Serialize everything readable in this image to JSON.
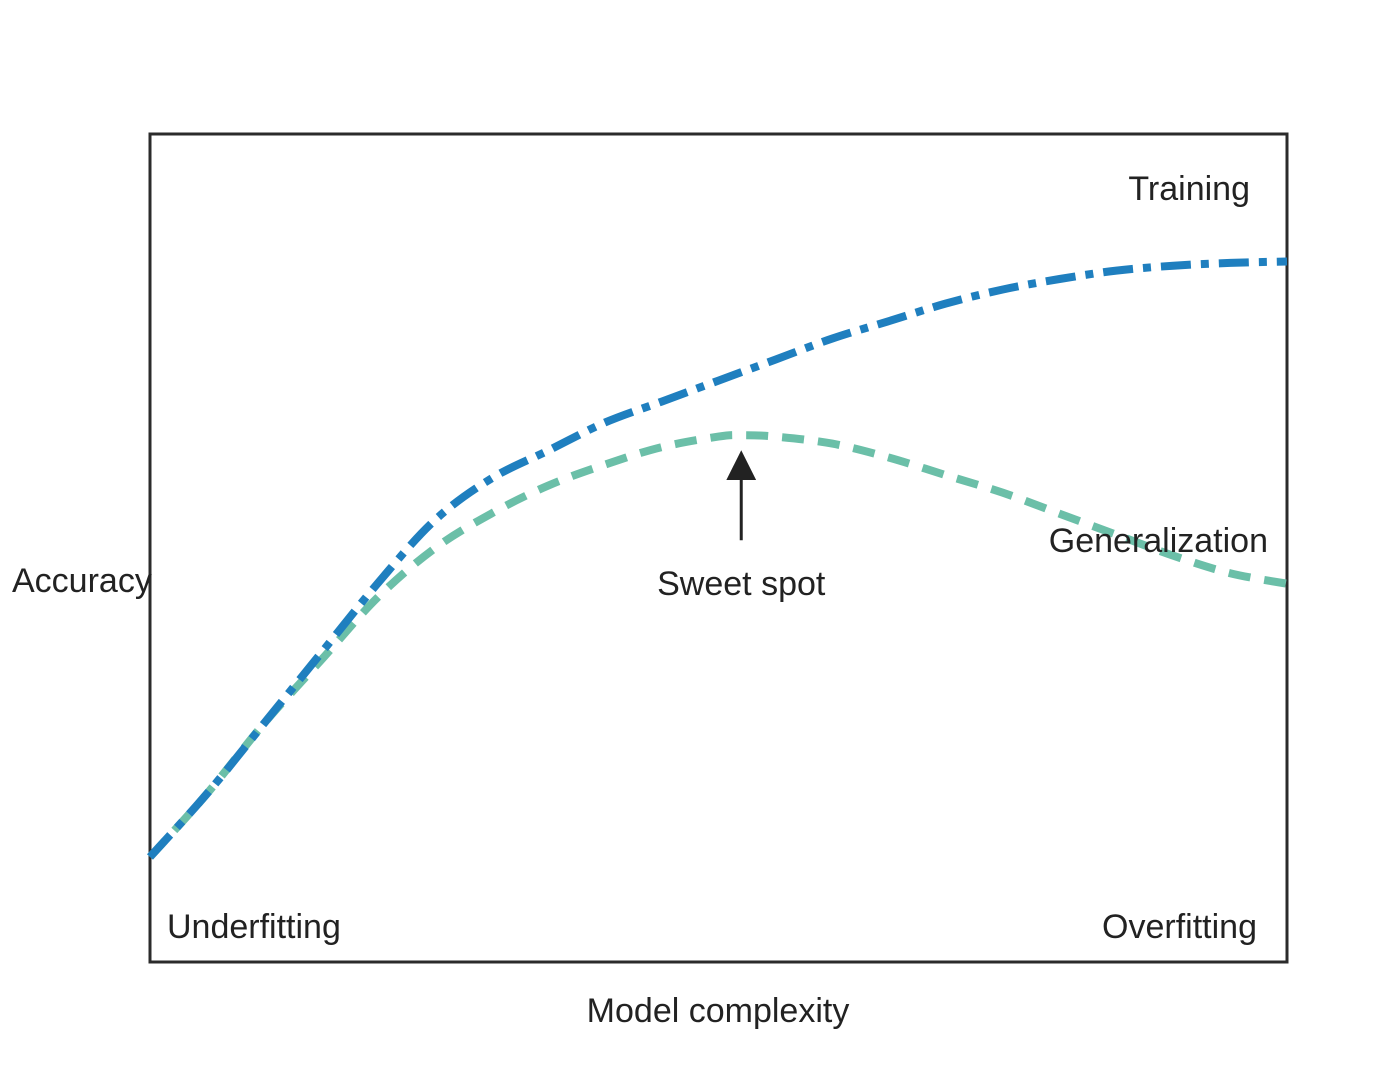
{
  "chart_data": {
    "type": "line",
    "title": "",
    "xlabel": "Model complexity",
    "ylabel": "Accuracy",
    "xlim": [
      0,
      100
    ],
    "ylim": [
      0,
      100
    ],
    "grid": false,
    "series": [
      {
        "name": "Training",
        "color": "#1f7fbf",
        "dash": "dash-dot",
        "x": [
          0,
          5,
          10,
          15,
          20,
          25,
          30,
          35,
          40,
          45,
          50,
          55,
          60,
          65,
          70,
          75,
          80,
          85,
          90,
          95,
          100
        ],
        "y": [
          15,
          24,
          34,
          44,
          54,
          63,
          69,
          73,
          77,
          80,
          83,
          86,
          89,
          91.5,
          94,
          96,
          97.5,
          98.7,
          99.4,
          99.8,
          100
        ]
      },
      {
        "name": "Generalization",
        "color": "#6bbfa8",
        "dash": "dashed",
        "x": [
          0,
          5,
          10,
          15,
          20,
          25,
          30,
          35,
          40,
          45,
          50,
          52,
          55,
          60,
          65,
          70,
          75,
          80,
          85,
          90,
          95,
          100
        ],
        "y": [
          15,
          24,
          34,
          43,
          52,
          59,
          64,
          68,
          71,
          73.5,
          75,
          75.2,
          75,
          74,
          72,
          69.5,
          67,
          64,
          61,
          58,
          55.5,
          54
        ]
      }
    ],
    "annotations": [
      {
        "text": "Sweet spot",
        "x": 52,
        "y": 75.2,
        "arrow": "up"
      },
      {
        "text": "Underfitting",
        "position": "bottom-left"
      },
      {
        "text": "Overfitting",
        "position": "bottom-right"
      }
    ]
  }
}
